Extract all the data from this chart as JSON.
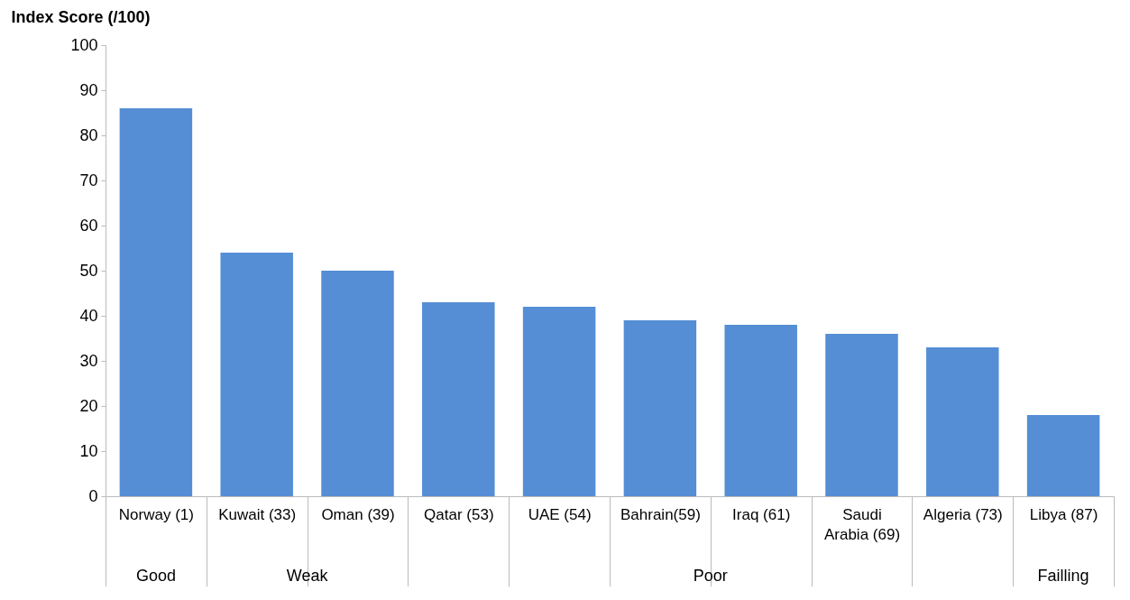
{
  "chart_data": {
    "type": "bar",
    "ylabel": "Index Score (/100)",
    "categories": [
      "Norway (1)",
      "Kuwait (33)",
      "Oman (39)",
      "Qatar (53)",
      "UAE (54)",
      "Bahrain(59)",
      "Iraq (61)",
      "Saudi Arabia (69)",
      "Algeria (73)",
      "Libya (87)"
    ],
    "values": [
      86,
      54,
      50,
      43,
      42,
      39,
      38,
      36,
      33,
      18
    ],
    "color": "#558ed5",
    "ylim": [
      0,
      100
    ],
    "yticks": [
      0,
      10,
      20,
      30,
      40,
      50,
      60,
      70,
      80,
      90,
      100
    ],
    "grid": false,
    "annotations": [
      "Good",
      "Weak",
      "Poor",
      "Failling"
    ]
  }
}
